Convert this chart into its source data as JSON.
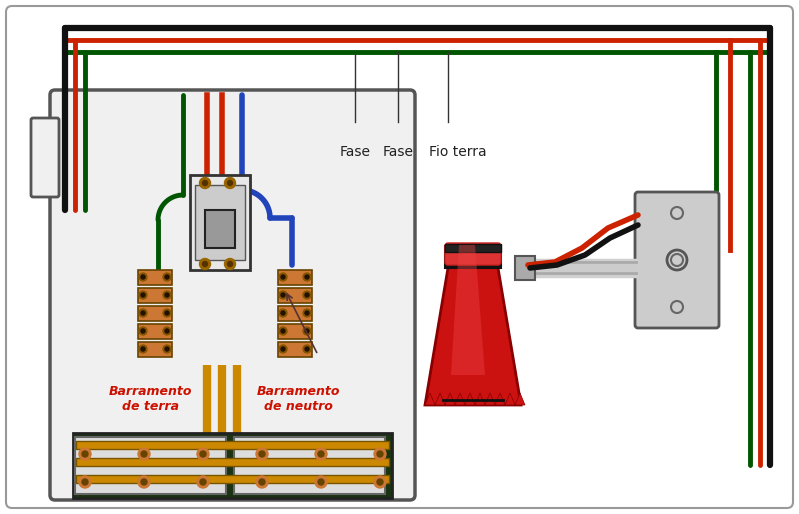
{
  "bg": "#ffffff",
  "wire_red": "#cc2200",
  "wire_green": "#005500",
  "wire_black": "#111111",
  "wire_blue": "#2244bb",
  "panel_fill": "#f0f0f0",
  "panel_border": "#555555",
  "term_orange": "#cc7733",
  "term_dark": "#664400",
  "bus_board": "#1a3311",
  "bus_copper": "#cc8800",
  "bus_white": "#dddddd",
  "cb_light": "#e8e8e8",
  "cb_mid": "#cccccc",
  "cb_dark": "#999999",
  "bell_red": "#cc1111",
  "bell_dark_red": "#880000",
  "bell_black": "#111111",
  "plate_fill": "#cccccc",
  "plate_border": "#555555",
  "conduit_col": "#aaaaaa",
  "outer_border": "#999999",
  "label_fase1": "Fase",
  "label_fase2": "Fase",
  "label_fio_terra": "Fio terra",
  "label_terra": "Barramento\nde terra",
  "label_neutro": "Barramento\nde neutro",
  "font_size_label": 10,
  "font_size_bus": 9
}
